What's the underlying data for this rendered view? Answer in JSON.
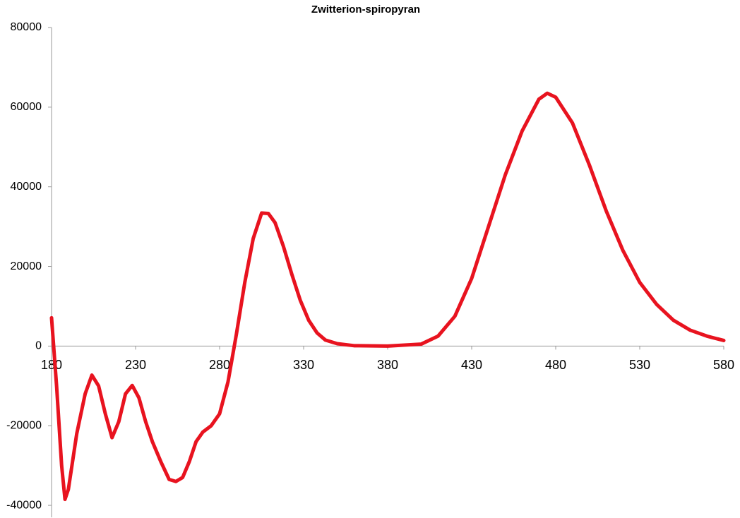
{
  "chart_data": {
    "type": "line",
    "title": "Zwitterion-spiropyran",
    "x": [
      180,
      183,
      186,
      188,
      190,
      195,
      200,
      204,
      208,
      212,
      216,
      220,
      224,
      228,
      232,
      236,
      240,
      245,
      250,
      254,
      258,
      262,
      266,
      270,
      275,
      280,
      285,
      290,
      295,
      300,
      305,
      309,
      313,
      318,
      323,
      328,
      333,
      338,
      343,
      350,
      360,
      380,
      400,
      410,
      420,
      430,
      440,
      450,
      460,
      470,
      475,
      480,
      490,
      500,
      510,
      520,
      530,
      540,
      550,
      560,
      570,
      580
    ],
    "series": [
      {
        "name": "Zwitterion-spiropyran",
        "color": "#e8131f",
        "values": [
          7100,
          -10000,
          -30000,
          -38500,
          -36000,
          -22000,
          -12000,
          -7300,
          -10000,
          -17000,
          -23000,
          -19000,
          -12000,
          -9900,
          -13000,
          -19000,
          -24000,
          -29000,
          -33500,
          -34000,
          -33000,
          -29000,
          -24000,
          -21600,
          -20000,
          -17000,
          -9000,
          3000,
          16000,
          27000,
          33400,
          33300,
          31000,
          25000,
          18000,
          11500,
          6500,
          3300,
          1500,
          600,
          100,
          0,
          500,
          2500,
          7500,
          17000,
          30000,
          43000,
          54000,
          62000,
          63500,
          62500,
          56000,
          45500,
          34000,
          24000,
          16000,
          10500,
          6500,
          4000,
          2500,
          1400
        ]
      }
    ],
    "xlim": [
      180,
      580
    ],
    "xticks": [
      180,
      230,
      280,
      330,
      380,
      430,
      480,
      530,
      580
    ],
    "ylim": [
      -43000,
      80000
    ],
    "yticks": [
      -40000,
      -20000,
      0,
      20000,
      40000,
      60000,
      80000
    ]
  }
}
